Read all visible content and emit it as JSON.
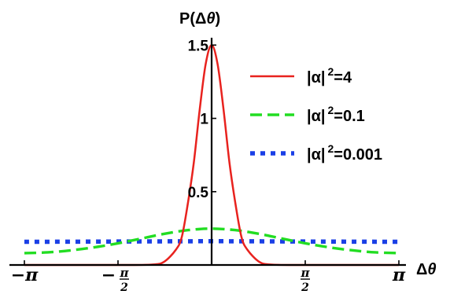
{
  "chart_data": {
    "type": "line",
    "title": "",
    "xlabel_main": "Δ",
    "xlabel_var": "θ",
    "ylabel_pre": "P(Δ",
    "ylabel_var": "θ",
    "ylabel_post": ")",
    "xlim": [
      -3.14159,
      3.14159
    ],
    "ylim": [
      0,
      1.55
    ],
    "xticks": [
      {
        "value": -3.14159,
        "label": "−π"
      },
      {
        "value": -1.5708,
        "label_sign": "−",
        "label_num": "π",
        "label_den": "2"
      },
      {
        "value": 1.5708,
        "label_num": "π",
        "label_den": "2"
      },
      {
        "value": 3.14159,
        "label": "π"
      }
    ],
    "yticks": [
      {
        "value": 0.5,
        "label": "0.5"
      },
      {
        "value": 1.0,
        "label": "1"
      },
      {
        "value": 1.5,
        "label": "1.5"
      }
    ],
    "grid": false,
    "legend_position": "top-right",
    "series": [
      {
        "name_pre": "|α|",
        "name_sup": "2",
        "name_post": "=4",
        "color": "#e8221e",
        "style": "solid",
        "x": [
          -3.14159,
          -1.5,
          -1.0,
          -0.8,
          -0.6,
          -0.5,
          -0.4,
          -0.3,
          -0.2,
          -0.1,
          0,
          0.1,
          0.2,
          0.3,
          0.4,
          0.5,
          0.6,
          0.8,
          1.0,
          1.5,
          3.14159
        ],
        "y": [
          0,
          0,
          0.003,
          0.021,
          0.104,
          0.192,
          0.417,
          0.695,
          1.06,
          1.37,
          1.5,
          1.37,
          1.06,
          0.695,
          0.417,
          0.192,
          0.104,
          0.021,
          0.003,
          0,
          0
        ]
      },
      {
        "name_pre": "|α|",
        "name_sup": "2",
        "name_post": "=0.1",
        "color": "#22dd22",
        "style": "dashed",
        "x": [
          -3.14159,
          -2.75,
          -2.36,
          -1.96,
          -1.57,
          -1.18,
          -0.79,
          -0.39,
          0,
          0.39,
          0.79,
          1.18,
          1.57,
          1.96,
          2.36,
          2.75,
          3.14159
        ],
        "y": [
          0.081,
          0.086,
          0.1,
          0.121,
          0.148,
          0.18,
          0.213,
          0.238,
          0.248,
          0.238,
          0.213,
          0.18,
          0.148,
          0.121,
          0.1,
          0.086,
          0.081
        ]
      },
      {
        "name_pre": "|α|",
        "name_sup": "2",
        "name_post": "=0.001",
        "color": "#1a3fe6",
        "style": "dotted",
        "x": [
          -3.14159,
          -1.57,
          0,
          1.57,
          3.14159
        ],
        "y": [
          0.158,
          0.16,
          0.162,
          0.16,
          0.158
        ]
      }
    ]
  }
}
